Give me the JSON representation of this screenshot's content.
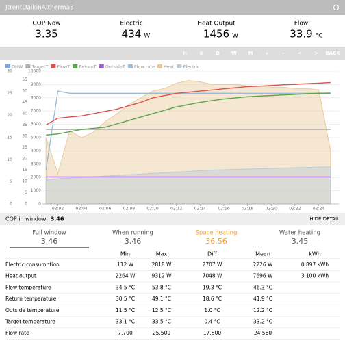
{
  "header": {
    "title": "JtrentDaikinAltherma3"
  },
  "stats": [
    {
      "label": "COP Now",
      "value": "3.35",
      "unit": ""
    },
    {
      "label": "Electric",
      "value": "434",
      "unit": "W"
    },
    {
      "label": "Heat Output",
      "value": "1456",
      "unit": "W"
    },
    {
      "label": "Flow",
      "value": "33.9",
      "unit": "°C"
    }
  ],
  "toolbar": [
    "H",
    "6",
    "D",
    "W",
    "M",
    "+",
    "-",
    "<",
    ">",
    "BACK"
  ],
  "chart_data": {
    "type": "line",
    "x": [
      "02:01",
      "02:02",
      "02:03",
      "02:04",
      "02:05",
      "02:06",
      "02:07",
      "02:08",
      "02:09",
      "02:10",
      "02:11",
      "02:12",
      "02:13",
      "02:14",
      "02:15",
      "02:16",
      "02:17",
      "02:18",
      "02:19",
      "02:20",
      "02:21",
      "02:22",
      "02:23",
      "02:24",
      "02:25"
    ],
    "xticks": [
      "02:02",
      "02:04",
      "02:06",
      "02:08",
      "02:10",
      "02:12",
      "02:14",
      "02:16",
      "02:18",
      "02:20",
      "02:22",
      "02:24"
    ],
    "ylim": [
      0,
      58.8
    ],
    "yticks": [
      0,
      5,
      10,
      15,
      20,
      25,
      30,
      35,
      40,
      45,
      50,
      55
    ],
    "y2lim": [
      0,
      10000
    ],
    "y2ticks": [
      0,
      1000,
      2000,
      3000,
      4000,
      5000,
      6000,
      7000,
      8000,
      9000,
      10000
    ],
    "y3lim": [
      0,
      30
    ],
    "y3ticks": [
      0,
      5,
      10,
      15,
      20,
      25,
      30
    ],
    "series": [
      {
        "name": "DHW",
        "color": "#7ea6e0",
        "values": [
          null,
          null,
          null,
          null,
          null,
          null,
          null,
          null,
          null,
          null,
          null,
          null,
          null,
          null,
          null,
          null,
          null,
          null,
          null,
          null,
          null,
          null,
          null,
          null,
          null
        ]
      },
      {
        "name": "TargetT",
        "color": "#b0b0b0",
        "values": [
          33,
          33,
          33,
          33,
          33,
          33,
          33,
          33,
          33,
          33,
          33,
          33,
          33,
          33,
          33,
          33,
          33,
          33,
          33,
          33,
          33,
          33,
          33,
          33,
          33
        ]
      },
      {
        "name": "FlowT",
        "color": "#d9534f",
        "values": [
          35,
          38,
          38.5,
          39,
          40,
          41,
          42,
          43.5,
          45,
          47,
          48,
          49,
          49.5,
          50,
          50.5,
          51,
          51.5,
          52,
          52.2,
          52.5,
          52.8,
          53,
          53.3,
          53.5,
          53.8
        ]
      },
      {
        "name": "ReturnT",
        "color": "#5ba34f",
        "values": [
          30.5,
          31,
          32,
          33,
          33.5,
          34,
          35.5,
          37,
          38.5,
          40,
          41.5,
          43,
          44,
          45,
          45.8,
          46.5,
          47,
          47.5,
          47.8,
          48,
          48.3,
          48.5,
          48.8,
          49,
          49.1
        ]
      },
      {
        "name": "OutsideT",
        "color": "#9d60d6",
        "values": [
          12,
          12,
          12,
          12,
          12,
          12,
          12,
          12,
          12,
          12,
          12,
          12,
          12,
          12,
          12,
          12,
          12,
          12,
          12,
          12,
          12,
          12,
          12,
          12,
          12
        ]
      },
      {
        "name": "Flow rate",
        "color": "#9bbcd8",
        "axis": "y3",
        "values": [
          7.7,
          25.5,
          25,
          25,
          25,
          25,
          25,
          25,
          25,
          25,
          25,
          25,
          25,
          25,
          25,
          25,
          25,
          25,
          25,
          25,
          25,
          25,
          25,
          25,
          25
        ]
      },
      {
        "name": "Heat",
        "color": "#e8c99a",
        "axis": "y2",
        "area": true,
        "values": [
          5000,
          2300,
          5500,
          5000,
          5400,
          6200,
          6800,
          7500,
          8000,
          8500,
          8700,
          9100,
          9300,
          9200,
          9000,
          9000,
          9000,
          8900,
          8900,
          8800,
          8800,
          8700,
          8700,
          8600,
          4000
        ]
      },
      {
        "name": "Electric",
        "color": "#b8cad8",
        "axis": "y2",
        "area": true,
        "values": [
          1800,
          1900,
          1950,
          2000,
          2050,
          2100,
          2150,
          2200,
          2250,
          2300,
          2350,
          2400,
          2450,
          2500,
          2550,
          2580,
          2600,
          2630,
          2650,
          2680,
          2700,
          2730,
          2750,
          2780,
          2800
        ]
      }
    ]
  },
  "summary": {
    "label": "COP in window:",
    "value": "3.46",
    "action": "HIDE DETAIL"
  },
  "tabs": [
    {
      "label": "Full window",
      "value": "3.46"
    },
    {
      "label": "When running",
      "value": "3.46"
    },
    {
      "label": "Space heating",
      "value": "36.56"
    },
    {
      "label": "Water heating",
      "value": "3.45"
    }
  ],
  "table": {
    "columns": [
      "Min",
      "Max",
      "Diff",
      "Mean",
      "kWh"
    ],
    "rows": [
      [
        "Electric consumption",
        "112 W",
        "2818 W",
        "2707 W",
        "2226 W",
        "0.897 kWh"
      ],
      [
        "Heat output",
        "2264 W",
        "9312 W",
        "7048 W",
        "7696 W",
        "3.100 kWh"
      ],
      [
        "Flow temperature",
        "34.5 °C",
        "53.8 °C",
        "19.3 °C",
        "46.3 °C",
        ""
      ],
      [
        "Return temperature",
        "30.5 °C",
        "49.1 °C",
        "18.6 °C",
        "41.9 °C",
        ""
      ],
      [
        "Outside temperature",
        "11.5 °C",
        "12.5 °C",
        "1.0 °C",
        "12.2 °C",
        ""
      ],
      [
        "Target temperature",
        "33.1 °C",
        "33.5 °C",
        "0.4 °C",
        "33.2 °C",
        ""
      ],
      [
        "Flow rate",
        "7.700",
        "25.500",
        "17.800",
        "24.560",
        ""
      ]
    ]
  }
}
